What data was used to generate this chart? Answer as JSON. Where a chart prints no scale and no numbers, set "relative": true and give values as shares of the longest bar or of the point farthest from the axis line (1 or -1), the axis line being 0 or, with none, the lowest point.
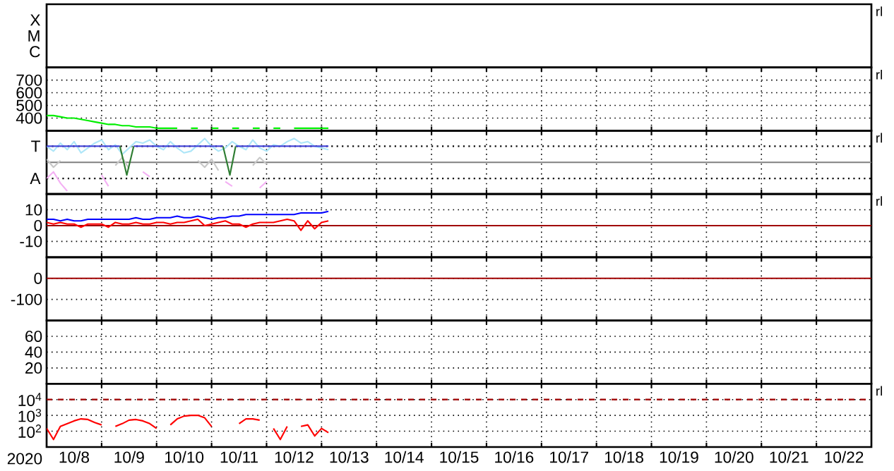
{
  "chart_data": [
    {
      "type": "other",
      "annotations": [
        "X",
        "M",
        "C",
        "rl"
      ]
    },
    {
      "type": "line",
      "ylim": [
        300,
        800
      ],
      "yticks": [
        700,
        600,
        500,
        400
      ],
      "xlim": [
        "2020-10-08T00:00",
        "2020-10-23T00:00"
      ],
      "xticks": [
        {
          "value": "2020-10-09",
          "label": null
        },
        {
          "value": "2020-10-10",
          "label": null
        },
        {
          "value": "2020-10-11",
          "label": null
        },
        {
          "value": "2020-10-12",
          "label": null
        },
        {
          "value": "2020-10-13",
          "label": null
        },
        {
          "value": "2020-10-14",
          "label": null
        },
        {
          "value": "2020-10-15",
          "label": null
        },
        {
          "value": "2020-10-16",
          "label": null
        },
        {
          "value": "2020-10-17",
          "label": null
        },
        {
          "value": "2020-10-18",
          "label": null
        },
        {
          "value": "2020-10-19",
          "label": null
        },
        {
          "value": "2020-10-20",
          "label": null
        },
        {
          "value": "2020-10-21",
          "label": null
        },
        {
          "value": "2020-10-22",
          "label": null
        }
      ],
      "tick_labels": "y",
      "grid": true,
      "annotations": [
        "rl"
      ],
      "x": [
        "2020-10-08T00:00",
        "2020-10-08T03:00",
        "2020-10-08T06:00",
        "2020-10-08T09:00",
        "2020-10-08T12:00",
        "2020-10-08T15:00",
        "2020-10-08T18:00",
        "2020-10-08T21:00",
        "2020-10-09T00:00",
        "2020-10-09T03:00",
        "2020-10-09T06:00",
        "2020-10-09T09:00",
        "2020-10-09T12:00",
        "2020-10-09T15:00",
        "2020-10-09T18:00",
        "2020-10-09T21:00",
        "2020-10-10T00:00",
        "2020-10-10T03:00",
        "2020-10-10T06:00",
        "2020-10-10T09:00",
        "2020-10-10T12:00",
        "2020-10-10T15:00",
        "2020-10-10T18:00",
        "2020-10-10T21:00",
        "2020-10-11T00:00",
        "2020-10-11T03:00",
        "2020-10-11T06:00",
        "2020-10-11T09:00",
        "2020-10-11T12:00",
        "2020-10-11T15:00",
        "2020-10-11T18:00",
        "2020-10-11T21:00",
        "2020-10-12T00:00",
        "2020-10-12T03:00",
        "2020-10-12T06:00",
        "2020-10-12T09:00",
        "2020-10-12T12:00",
        "2020-10-12T15:00",
        "2020-10-12T18:00",
        "2020-10-12T21:00",
        "2020-10-13T00:00",
        "2020-10-13T03:00"
      ],
      "series": [
        {
          "color": "#00ee00",
          "values": [
            420,
            420,
            410,
            400,
            400,
            390,
            380,
            370,
            360,
            350,
            350,
            340,
            340,
            330,
            330,
            330,
            320,
            320,
            320,
            320,
            null,
            320,
            320,
            null,
            320,
            320,
            null,
            320,
            320,
            null,
            320,
            320,
            null,
            320,
            320,
            null,
            320,
            320,
            320,
            320,
            320,
            320
          ]
        }
      ]
    },
    {
      "type": "line",
      "relative": true,
      "xlim": [
        "2020-10-08T00:00",
        "2020-10-23T00:00"
      ],
      "xticks": [
        {
          "value": "2020-10-09",
          "label": null
        },
        {
          "value": "2020-10-10",
          "label": null
        },
        {
          "value": "2020-10-11",
          "label": null
        },
        {
          "value": "2020-10-12",
          "label": null
        },
        {
          "value": "2020-10-13",
          "label": null
        },
        {
          "value": "2020-10-14",
          "label": null
        },
        {
          "value": "2020-10-15",
          "label": null
        },
        {
          "value": "2020-10-16",
          "label": null
        },
        {
          "value": "2020-10-17",
          "label": null
        },
        {
          "value": "2020-10-18",
          "label": null
        },
        {
          "value": "2020-10-19",
          "label": null
        },
        {
          "value": "2020-10-20",
          "label": null
        },
        {
          "value": "2020-10-21",
          "label": null
        },
        {
          "value": "2020-10-22",
          "label": null
        }
      ],
      "tick_labels": false,
      "grid": true,
      "annotations": [
        "rl"
      ],
      "ref_lines": [
        {
          "axis": "y",
          "value": 0,
          "color": "#808080"
        },
        {
          "axis": "y",
          "value": 0.56,
          "label": "T",
          "color": "#000000",
          "line_style": "dotted"
        },
        {
          "axis": "y",
          "value": -0.56,
          "label": "A",
          "color": "#000000",
          "line_style": "dotted"
        }
      ],
      "x": [
        "2020-10-08T00:00",
        "2020-10-08T03:00",
        "2020-10-08T06:00",
        "2020-10-08T09:00",
        "2020-10-08T12:00",
        "2020-10-08T15:00",
        "2020-10-08T18:00",
        "2020-10-08T21:00",
        "2020-10-09T00:00",
        "2020-10-09T03:00",
        "2020-10-09T06:00",
        "2020-10-09T09:00",
        "2020-10-09T12:00",
        "2020-10-09T15:00",
        "2020-10-09T18:00",
        "2020-10-09T21:00",
        "2020-10-10T00:00",
        "2020-10-10T03:00",
        "2020-10-10T06:00",
        "2020-10-10T09:00",
        "2020-10-10T12:00",
        "2020-10-10T15:00",
        "2020-10-10T18:00",
        "2020-10-10T21:00",
        "2020-10-11T00:00",
        "2020-10-11T03:00",
        "2020-10-11T06:00",
        "2020-10-11T09:00",
        "2020-10-11T12:00",
        "2020-10-11T15:00",
        "2020-10-11T18:00",
        "2020-10-11T21:00",
        "2020-10-12T00:00",
        "2020-10-12T03:00",
        "2020-10-12T06:00",
        "2020-10-12T09:00",
        "2020-10-12T12:00",
        "2020-10-12T15:00",
        "2020-10-12T18:00",
        "2020-10-12T21:00",
        "2020-10-13T00:00",
        "2020-10-13T03:00"
      ],
      "series": [
        {
          "color": "#c8c8c8",
          "values": [
            0.11,
            -0.17,
            0.06,
            null,
            null,
            null,
            null,
            null,
            null,
            null,
            -0.11,
            0.17,
            -0.22,
            null,
            null,
            null,
            null,
            null,
            null,
            null,
            null,
            null,
            0.06,
            -0.17,
            0.11,
            -0.28,
            null,
            null,
            null,
            null,
            -0.11,
            0.17,
            -0.06,
            null,
            null,
            null,
            null,
            null,
            null,
            null,
            null,
            null
          ]
        },
        {
          "color": "#aee6f8",
          "values": [
            0.56,
            0.39,
            0.67,
            0.44,
            0.72,
            0.33,
            0.5,
            0.67,
            0.78,
            0.44,
            0.61,
            0.28,
            0.5,
            0.72,
            0.67,
            0.78,
            0.56,
            0.44,
            0.72,
            0.5,
            0.33,
            0.39,
            0.61,
            0.83,
            0.56,
            0.39,
            0.5,
            0.72,
            0.56,
            0.44,
            0.78,
            0.5,
            0.39,
            0.61,
            0.56,
            0.72,
            0.83,
            0.67,
            0.72,
            0.56,
            0.5,
            0.44
          ]
        },
        {
          "color": "#4040d8",
          "x": [
            "2020-10-08T00:00",
            "2020-10-09T08:00",
            "2020-10-09T11:00",
            "2020-10-09T14:00",
            "2020-10-11T05:00",
            "2020-10-11T08:00",
            "2020-10-11T10:30",
            "2020-10-13T03:00"
          ],
          "values": [
            0.56,
            0.56,
            null,
            0.56,
            0.56,
            null,
            0.56,
            0.56
          ]
        },
        {
          "color": "#2e7d32",
          "x": [
            "2020-10-09T08:00",
            "2020-10-09T11:00",
            "2020-10-09T14:00",
            "2020-10-10T12:00",
            "2020-10-11T05:00",
            "2020-10-11T08:00",
            "2020-10-11T10:30"
          ],
          "values": [
            0.56,
            -0.44,
            0.56,
            null,
            0.56,
            -0.44,
            0.56
          ]
        },
        {
          "color": "#f4b0f4",
          "values": [
            -0.56,
            -0.33,
            -0.72,
            -1,
            null,
            null,
            null,
            null,
            -0.44,
            -0.83,
            null,
            null,
            null,
            null,
            -0.33,
            -0.5,
            null,
            null,
            null,
            null,
            null,
            null,
            null,
            null,
            null,
            null,
            -0.67,
            -0.83,
            null,
            null,
            null,
            -0.89,
            -0.67,
            null,
            null,
            null,
            null,
            null,
            null,
            null,
            null,
            null
          ]
        }
      ]
    },
    {
      "type": "line",
      "ylim": [
        -20,
        20
      ],
      "yticks": [
        10,
        0,
        -10
      ],
      "xlim": [
        "2020-10-08T00:00",
        "2020-10-23T00:00"
      ],
      "xticks": [
        {
          "value": "2020-10-09",
          "label": null
        },
        {
          "value": "2020-10-10",
          "label": null
        },
        {
          "value": "2020-10-11",
          "label": null
        },
        {
          "value": "2020-10-12",
          "label": null
        },
        {
          "value": "2020-10-13",
          "label": null
        },
        {
          "value": "2020-10-14",
          "label": null
        },
        {
          "value": "2020-10-15",
          "label": null
        },
        {
          "value": "2020-10-16",
          "label": null
        },
        {
          "value": "2020-10-17",
          "label": null
        },
        {
          "value": "2020-10-18",
          "label": null
        },
        {
          "value": "2020-10-19",
          "label": null
        },
        {
          "value": "2020-10-20",
          "label": null
        },
        {
          "value": "2020-10-21",
          "label": null
        },
        {
          "value": "2020-10-22",
          "label": null
        }
      ],
      "tick_labels": "y",
      "grid": true,
      "annotations": [
        "rl"
      ],
      "ref_lines": [
        {
          "axis": "y",
          "value": 0,
          "color": "#a00000"
        }
      ],
      "x": [
        "2020-10-08T00:00",
        "2020-10-08T03:00",
        "2020-10-08T06:00",
        "2020-10-08T09:00",
        "2020-10-08T12:00",
        "2020-10-08T15:00",
        "2020-10-08T18:00",
        "2020-10-08T21:00",
        "2020-10-09T00:00",
        "2020-10-09T03:00",
        "2020-10-09T06:00",
        "2020-10-09T09:00",
        "2020-10-09T12:00",
        "2020-10-09T15:00",
        "2020-10-09T18:00",
        "2020-10-09T21:00",
        "2020-10-10T00:00",
        "2020-10-10T03:00",
        "2020-10-10T06:00",
        "2020-10-10T09:00",
        "2020-10-10T12:00",
        "2020-10-10T15:00",
        "2020-10-10T18:00",
        "2020-10-10T21:00",
        "2020-10-11T00:00",
        "2020-10-11T03:00",
        "2020-10-11T06:00",
        "2020-10-11T09:00",
        "2020-10-11T12:00",
        "2020-10-11T15:00",
        "2020-10-11T18:00",
        "2020-10-11T21:00",
        "2020-10-12T00:00",
        "2020-10-12T03:00",
        "2020-10-12T06:00",
        "2020-10-12T09:00",
        "2020-10-12T12:00",
        "2020-10-12T15:00",
        "2020-10-12T18:00",
        "2020-10-12T21:00",
        "2020-10-13T00:00",
        "2020-10-13T03:00"
      ],
      "series": [
        {
          "color": "#0000ff",
          "values": [
            4,
            4,
            3,
            4,
            3,
            3,
            4,
            4,
            4,
            4,
            4,
            4,
            4,
            5,
            4,
            4,
            5,
            5,
            5,
            6,
            5,
            5,
            6,
            5,
            4,
            5,
            5,
            6,
            6,
            7,
            7,
            7,
            7,
            7,
            7,
            7,
            7,
            8,
            8,
            8,
            8,
            9
          ]
        },
        {
          "color": "#ff0000",
          "values": [
            2,
            1,
            2,
            1,
            1,
            -1,
            1,
            1,
            1,
            -1,
            2,
            1,
            1,
            2,
            1,
            1,
            2,
            2,
            1,
            2,
            2,
            3,
            4,
            0,
            1,
            2,
            3,
            1,
            1,
            -1,
            1,
            2,
            2,
            2,
            3,
            4,
            3,
            -3,
            3,
            -2,
            2,
            3
          ]
        }
      ]
    },
    {
      "type": "line",
      "ylim": [
        -200,
        100
      ],
      "yticks": [
        0,
        -100
      ],
      "xlim": [
        "2020-10-08T00:00",
        "2020-10-23T00:00"
      ],
      "xticks": [
        {
          "value": "2020-10-09",
          "label": null
        },
        {
          "value": "2020-10-10",
          "label": null
        },
        {
          "value": "2020-10-11",
          "label": null
        },
        {
          "value": "2020-10-12",
          "label": null
        },
        {
          "value": "2020-10-13",
          "label": null
        },
        {
          "value": "2020-10-14",
          "label": null
        },
        {
          "value": "2020-10-15",
          "label": null
        },
        {
          "value": "2020-10-16",
          "label": null
        },
        {
          "value": "2020-10-17",
          "label": null
        },
        {
          "value": "2020-10-18",
          "label": null
        },
        {
          "value": "2020-10-19",
          "label": null
        },
        {
          "value": "2020-10-20",
          "label": null
        },
        {
          "value": "2020-10-21",
          "label": null
        },
        {
          "value": "2020-10-22",
          "label": null
        }
      ],
      "tick_labels": "y",
      "grid": true,
      "ref_lines": [
        {
          "axis": "y",
          "value": 0,
          "color": "#a00000"
        }
      ]
    },
    {
      "type": "line",
      "ylim": [
        0,
        80
      ],
      "yticks": [
        60,
        40,
        20
      ],
      "xlim": [
        "2020-10-08T00:00",
        "2020-10-23T00:00"
      ],
      "xticks": [
        {
          "value": "2020-10-09",
          "label": null
        },
        {
          "value": "2020-10-10",
          "label": null
        },
        {
          "value": "2020-10-11",
          "label": null
        },
        {
          "value": "2020-10-12",
          "label": null
        },
        {
          "value": "2020-10-13",
          "label": null
        },
        {
          "value": "2020-10-14",
          "label": null
        },
        {
          "value": "2020-10-15",
          "label": null
        },
        {
          "value": "2020-10-16",
          "label": null
        },
        {
          "value": "2020-10-17",
          "label": null
        },
        {
          "value": "2020-10-18",
          "label": null
        },
        {
          "value": "2020-10-19",
          "label": null
        },
        {
          "value": "2020-10-20",
          "label": null
        },
        {
          "value": "2020-10-21",
          "label": null
        },
        {
          "value": "2020-10-22",
          "label": null
        }
      ],
      "tick_labels": "y",
      "grid": true
    },
    {
      "type": "line",
      "log": true,
      "ylim": [
        10,
        100000
      ],
      "yticks": [
        {
          "value": 10000,
          "label": "10$^{4}$"
        },
        {
          "value": 1000,
          "label": "10$^{3}$"
        },
        {
          "value": 100,
          "label": "10$^{2}$"
        }
      ],
      "xlabel": "2020",
      "xlim": [
        "2020-10-08T00:00",
        "2020-10-23T00:00"
      ],
      "xticks": [
        {
          "value": "2020-10-08T12:00",
          "label": "10/8"
        },
        {
          "value": "2020-10-09",
          "label": null
        },
        {
          "value": "2020-10-09T12:00",
          "label": "10/9"
        },
        {
          "value": "2020-10-10",
          "label": null
        },
        {
          "value": "2020-10-10T12:00",
          "label": "10/10"
        },
        {
          "value": "2020-10-11",
          "label": null
        },
        {
          "value": "2020-10-11T12:00",
          "label": "10/11"
        },
        {
          "value": "2020-10-12",
          "label": null
        },
        {
          "value": "2020-10-12T12:00",
          "label": "10/12"
        },
        {
          "value": "2020-10-13",
          "label": null
        },
        {
          "value": "2020-10-13T12:00",
          "label": "10/13"
        },
        {
          "value": "2020-10-14",
          "label": null
        },
        {
          "value": "2020-10-14T12:00",
          "label": "10/14"
        },
        {
          "value": "2020-10-15",
          "label": null
        },
        {
          "value": "2020-10-15T12:00",
          "label": "10/15"
        },
        {
          "value": "2020-10-16",
          "label": null
        },
        {
          "value": "2020-10-16T12:00",
          "label": "10/16"
        },
        {
          "value": "2020-10-17",
          "label": null
        },
        {
          "value": "2020-10-17T12:00",
          "label": "10/17"
        },
        {
          "value": "2020-10-18",
          "label": null
        },
        {
          "value": "2020-10-18T12:00",
          "label": "10/18"
        },
        {
          "value": "2020-10-19",
          "label": null
        },
        {
          "value": "2020-10-19T12:00",
          "label": "10/19"
        },
        {
          "value": "2020-10-20",
          "label": null
        },
        {
          "value": "2020-10-20T12:00",
          "label": "10/20"
        },
        {
          "value": "2020-10-21",
          "label": null
        },
        {
          "value": "2020-10-21T12:00",
          "label": "10/21"
        },
        {
          "value": "2020-10-22",
          "label": null
        },
        {
          "value": "2020-10-22T12:00",
          "label": "10/22"
        }
      ],
      "grid": true,
      "annotations": [
        "rl"
      ],
      "ref_lines": [
        {
          "axis": "y",
          "value": 10000,
          "color": "#a00000",
          "line_style": "dashed"
        }
      ],
      "x": [
        "2020-10-08T00:00",
        "2020-10-08T03:00",
        "2020-10-08T06:00",
        "2020-10-08T09:00",
        "2020-10-08T12:00",
        "2020-10-08T15:00",
        "2020-10-08T18:00",
        "2020-10-08T21:00",
        "2020-10-09T00:00",
        "2020-10-09T03:00",
        "2020-10-09T06:00",
        "2020-10-09T09:00",
        "2020-10-09T12:00",
        "2020-10-09T15:00",
        "2020-10-09T18:00",
        "2020-10-09T21:00",
        "2020-10-10T00:00",
        "2020-10-10T03:00",
        "2020-10-10T06:00",
        "2020-10-10T09:00",
        "2020-10-10T12:00",
        "2020-10-10T15:00",
        "2020-10-10T18:00",
        "2020-10-10T21:00",
        "2020-10-11T00:00",
        "2020-10-11T03:00",
        "2020-10-11T06:00",
        "2020-10-11T09:00",
        "2020-10-11T12:00",
        "2020-10-11T15:00",
        "2020-10-11T18:00",
        "2020-10-11T21:00",
        "2020-10-12T00:00",
        "2020-10-12T03:00",
        "2020-10-12T06:00",
        "2020-10-12T09:00",
        "2020-10-12T12:00",
        "2020-10-12T15:00",
        "2020-10-12T18:00",
        "2020-10-12T21:00",
        "2020-10-13T00:00",
        "2020-10-13T03:00"
      ],
      "series": [
        {
          "color": "#ff0000",
          "values": [
            150,
            30,
            200,
            300,
            450,
            600,
            550,
            350,
            250,
            null,
            200,
            300,
            500,
            550,
            450,
            300,
            150,
            null,
            250,
            600,
            900,
            1000,
            1000,
            700,
            200,
            null,
            null,
            null,
            300,
            600,
            600,
            500,
            null,
            150,
            30,
            200,
            null,
            200,
            250,
            50,
            150,
            80
          ]
        }
      ]
    }
  ]
}
